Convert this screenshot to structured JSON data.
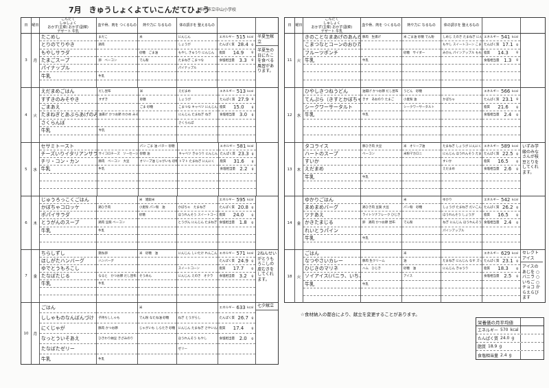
{
  "title": "7月　きゅうしょくよていこんだてひょう",
  "school": "市川市立中山小学校",
  "header": {
    "date": "日",
    "weekday": "曜日",
    "menu": "こんだて",
    "menu_sub1": "しゅしょく",
    "menu_sub2": "おかず(主菜) おかず(副菜)",
    "menu_sub3": "デザート 牛乳",
    "red": "血や骨、肉を つくるもの",
    "yellow": "熱や力に なるもの",
    "green": "体の調子を 整えるもの"
  },
  "nutrition_labels": [
    "エネルギー",
    "たんぱく質",
    "脂質",
    "食塩相当量"
  ],
  "units": [
    "kcal",
    "g",
    "g",
    "g"
  ],
  "left": [
    {
      "date": "3",
      "weekday": "月",
      "dishes": [
        [
          "たこめし",
          "まだこ",
          "米",
          "にんじん"
        ],
        [
          "とりのてりやき",
          "鶏肉",
          "",
          "しょうが"
        ],
        [
          "もやしサラダ",
          "",
          "砂糖　ごま油",
          "もやし きゅうり にんじん"
        ],
        [
          "たまごスープ",
          "卵　ベーコン",
          "でん粉",
          "たまねぎ こまつな"
        ],
        [
          "パイナップル",
          "",
          "",
          "パイナップル"
        ],
        [
          "牛乳",
          "牛乳",
          "",
          ""
        ]
      ],
      "nutrition": [
        "515",
        "28.4",
        "14.9",
        "3.3"
      ],
      "note_title": "半夏生献立",
      "note": "半夏生の日にたこを食べる風習があります。"
    },
    {
      "date": "4",
      "weekday": "火",
      "dishes": [
        [
          "えだまめごはん",
          "だし昆布",
          "米",
          "えだまめ"
        ],
        [
          "すずきのみそやき",
          "すずき",
          "砂糖",
          "しょうが"
        ],
        [
          "ごまあえ",
          "",
          "ごま 砂糖",
          "こまつな キャベツ にんじん もやし"
        ],
        [
          "たまねぎとあぶらあげのみそしる",
          "油揚げ かつお節 わかめ みそ",
          "",
          "にんじん たまねぎ ねぎ"
        ],
        [
          "さくらんぼ",
          "",
          "",
          "さくらんぼ"
        ],
        [
          "牛乳",
          "牛乳",
          "",
          ""
        ]
      ],
      "nutrition": [
        "513",
        "27.9",
        "15.0",
        "3.0"
      ],
      "note_title": "",
      "note": ""
    },
    {
      "date": "5",
      "weekday": "水",
      "dishes": [
        [
          "セサミトースト",
          "",
          "パン ごま 油 バター 砂糖",
          ""
        ],
        [
          "チーズいりイタリアンサラダ",
          "サイコロチーズ　ソーセージ",
          "砂糖 油",
          "キャベツ きゅうり にんじん レモン"
        ],
        [
          "チリ・コン・カン",
          "豚肉　ベーコン　大豆",
          "オリーブ油 じゃがいも 砂糖",
          "トマト たまねぎ にんにく"
        ],
        [
          "牛乳",
          "牛乳",
          "",
          ""
        ]
      ],
      "nutrition": [
        "581",
        "23.3",
        "31.6",
        "2.2"
      ],
      "note_title": "",
      "note": ""
    },
    {
      "date": "6",
      "weekday": "木",
      "dishes": [
        [
          "じゅうろっこくごはん",
          "",
          "米　雑穀米",
          ""
        ],
        [
          "かぼちゃコロッケ",
          "鶏ひき肉",
          "小麦粉 パン粉　油",
          "かぼちゃ　たまねぎ"
        ],
        [
          "ポパイサラダ",
          "",
          "砂糖",
          "ほうれんそう スイートコーン もやし"
        ],
        [
          "とうがんのスープ",
          "鶏肉 豆腐 ベーコン",
          "",
          "とうがん にんじん たまねぎ"
        ],
        [
          "牛乳",
          "牛乳",
          "",
          ""
        ]
      ],
      "nutrition": [
        "595",
        "20.8",
        "24.0",
        "1.8"
      ],
      "note_title": "",
      "note": ""
    },
    {
      "date": "7",
      "weekday": "金",
      "dishes": [
        [
          "ちらしずし",
          "錦糸卵",
          "米　砂糖　油",
          "にんじん しいたけ れんこん"
        ],
        [
          "ほしがたハンバーグ",
          "ハンバーグ",
          "",
          ""
        ],
        [
          "ゆでとうもろこし",
          "",
          "",
          "スイートコーン"
        ],
        [
          "たなばたじる",
          "なると　かつお節 だし昆布",
          "そうめん",
          "にんじん えのき　オクラ"
        ],
        [
          "牛乳",
          "牛乳",
          "",
          ""
        ]
      ],
      "nutrition": [
        "571",
        "24.9",
        "17.7",
        "3.2"
      ],
      "note_title": "",
      "note": "2ねんせいがとうもろこしの皮むきをしてくれます。"
    },
    {
      "date": "10",
      "weekday": "月",
      "dishes": [
        [
          "ごはん",
          "",
          "米",
          ""
        ],
        [
          "ししゃものなんばんづけ",
          "子持ちししゃも",
          "でん粉 なたね油 砂糖",
          "ねぎ とうがらし"
        ],
        [
          "にくじゃが",
          "豚肉 かつお節",
          "じゃがいも しらたき 砂糖",
          "にんじん たまねぎ さやいんげん"
        ],
        [
          "なっとういそあえ",
          "ひきわり納豆 きざみのり",
          "",
          "ほうれんそう もやし"
        ],
        [
          "たなばたゼリー",
          "",
          "",
          "ゼリー"
        ],
        [
          "牛乳",
          "牛乳",
          "",
          ""
        ]
      ],
      "nutrition": [
        "633",
        "26.7",
        "17.4",
        "2.0"
      ],
      "note_title": "七夕献立",
      "note": ""
    }
  ],
  "right": [
    {
      "date": "11",
      "weekday": "火",
      "dishes": [
        [
          "きのことなまあげのあんかけうどん",
          "豚肉　生揚げ",
          "米 ごま油 砂糖 でん粉",
          "しめじ えのき たまねぎ にんじん"
        ],
        [
          "こまつなとコーンのおひたし",
          "",
          "",
          "もやし スイートコーン こまつな"
        ],
        [
          "フルーツポンチ",
          "",
          "砂糖　サイダー",
          "みかん パインアップル もも"
        ],
        [
          "牛乳",
          "牛乳",
          "",
          ""
        ]
      ],
      "nutrition": [
        "541",
        "17.1",
        "14.3",
        "1.3"
      ],
      "note_title": "",
      "note": ""
    },
    {
      "date": "12",
      "weekday": "水",
      "dishes": [
        [
          "ひやしきつねうどん",
          "油揚げ かつお節 だし昆布",
          "うどん　砂糖",
          ""
        ],
        [
          "てんぷら（きすとかぼちゃ）",
          "きす　あおのり たまご",
          "小麦粉 油",
          "かぼちゃ"
        ],
        [
          "シークワーサータルト",
          "",
          "シークワーサータルト",
          ""
        ],
        [
          "牛乳",
          "牛乳",
          "",
          ""
        ]
      ],
      "nutrition": [
        "566",
        "23.1",
        "21.6",
        "2.4"
      ],
      "note_title": "",
      "note": ""
    },
    {
      "date": "13",
      "weekday": "木",
      "dishes": [
        [
          "タコライス",
          "豚ひき肉 大豆",
          "米　オリーブ油",
          "たまねぎ しょうが にんにく トマト"
        ],
        [
          "ハートのスープ",
          "ベーコン",
          "米粉マカロニ",
          "にんじん ほうれんそう たまねぎ"
        ],
        [
          "すいか",
          "",
          "",
          "すいか"
        ],
        [
          "えだまめ",
          "",
          "",
          "えだまめ"
        ],
        [
          "牛乳",
          "牛乳",
          "",
          ""
        ]
      ],
      "nutrition": [
        "589",
        "22.5",
        "16.5",
        "2.6"
      ],
      "note_title": "",
      "note": "いずみ学級のみなさんが枝豆とりをしてくれます。"
    },
    {
      "date": "14",
      "weekday": "金",
      "dishes": [
        [
          "ゆかりごはん",
          "",
          "米",
          "ゆかり"
        ],
        [
          "まめまめバーグ",
          "鶏ひき肉 豆腐 大豆",
          "パン粉　砂糖",
          "しょうが たまねぎ だいこん"
        ],
        [
          "ツナあえ",
          "ライトツナフレーク ひじき",
          "",
          "ほうれんそう しょうが"
        ],
        [
          "かきたまじる",
          "卵　鶏肉 かつお節 昆布",
          "でん粉",
          "ねぎ にんじん ほうれんそう"
        ],
        [
          "れいとうパイン",
          "",
          "",
          "パインアップル"
        ],
        [
          "牛乳",
          "牛乳",
          "",
          ""
        ]
      ],
      "nutrition": [
        "542",
        "26.2",
        "16.5",
        "2.4"
      ],
      "note_title": "",
      "note": ""
    },
    {
      "date": "18",
      "weekday": "火",
      "dishes": [
        [
          "ごはん",
          "",
          "米",
          ""
        ],
        [
          "なつやさいカレー",
          "豚肉 生クリーム",
          "油",
          "たまねぎ にんじん なす ズッキーニ"
        ],
        [
          "ひじきのマリネ",
          "ハム　ひじき",
          "砂糖　油",
          "にんじん きゅうり"
        ],
        [
          "ソイアイス(バニラ、いちご、チョコ)",
          "",
          "アイス",
          ""
        ],
        [
          "牛乳",
          "牛乳",
          "",
          ""
        ]
      ],
      "nutrition": [
        "629",
        "23.1",
        "18.3",
        "2.5"
      ],
      "note_title": "セレクトアイス",
      "note": "アイスのあじを ○バニラ ○いちご ○チョコ からえらびます"
    }
  ],
  "footer_note": "☆食材納入の都合により、献立を変更することがあります。",
  "monthly_avg": {
    "title": "栄養価の月平均値",
    "values": [
      "570",
      "24.0",
      "18.9",
      "2.4"
    ]
  }
}
